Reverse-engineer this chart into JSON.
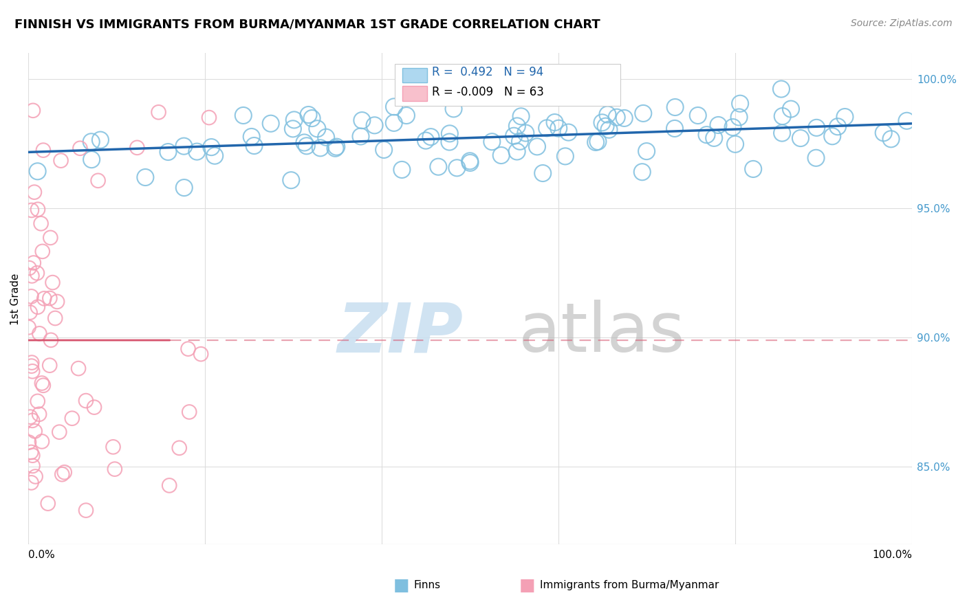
{
  "title": "FINNISH VS IMMIGRANTS FROM BURMA/MYANMAR 1ST GRADE CORRELATION CHART",
  "source": "Source: ZipAtlas.com",
  "ylabel": "1st Grade",
  "yticks": [
    "100.0%",
    "95.0%",
    "90.0%",
    "85.0%"
  ],
  "ytick_vals": [
    1.0,
    0.95,
    0.9,
    0.85
  ],
  "xlim": [
    0.0,
    1.0
  ],
  "ylim": [
    0.82,
    1.01
  ],
  "blue_R": 0.492,
  "blue_N": 94,
  "pink_R": -0.009,
  "pink_N": 63,
  "blue_scatter_color": "#7fbfdf",
  "pink_scatter_color": "#f4a0b5",
  "blue_line_color": "#2166ac",
  "pink_line_color": "#d6546e",
  "legend_label_blue": "Finns",
  "legend_label_pink": "Immigrants from Burma/Myanmar",
  "watermark_zip": "ZIP",
  "watermark_atlas": "atlas",
  "background_color": "#ffffff",
  "grid_color": "#dddddd",
  "seed": 42
}
